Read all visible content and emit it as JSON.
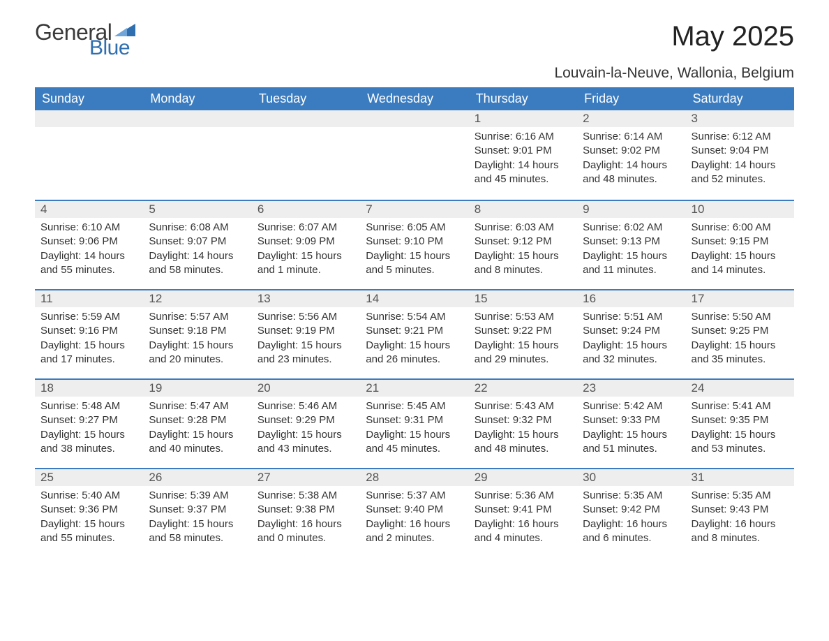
{
  "colors": {
    "header_bg": "#3b7cc0",
    "header_text": "#ffffff",
    "daynum_bg": "#eeeeee",
    "daynum_border": "#3b7cc0",
    "daynum_text": "#555555",
    "body_text": "#333333",
    "logo_blue": "#2f6fb0",
    "logo_general": "#3a3a3a",
    "background": "#ffffff"
  },
  "typography": {
    "title_fontsize": 40,
    "subtitle_fontsize": 21,
    "weekday_fontsize": 18,
    "daynum_fontsize": 17,
    "body_fontsize": 15,
    "font_family": "Arial"
  },
  "logo": {
    "general": "General",
    "blue": "Blue"
  },
  "title": "May 2025",
  "subtitle": "Louvain-la-Neuve, Wallonia, Belgium",
  "weekdays": [
    "Sunday",
    "Monday",
    "Tuesday",
    "Wednesday",
    "Thursday",
    "Friday",
    "Saturday"
  ],
  "weeks": [
    [
      {
        "blank": true
      },
      {
        "blank": true
      },
      {
        "blank": true
      },
      {
        "blank": true
      },
      {
        "num": "1",
        "sunrise": "Sunrise: 6:16 AM",
        "sunset": "Sunset: 9:01 PM",
        "daylight": "Daylight: 14 hours and 45 minutes."
      },
      {
        "num": "2",
        "sunrise": "Sunrise: 6:14 AM",
        "sunset": "Sunset: 9:02 PM",
        "daylight": "Daylight: 14 hours and 48 minutes."
      },
      {
        "num": "3",
        "sunrise": "Sunrise: 6:12 AM",
        "sunset": "Sunset: 9:04 PM",
        "daylight": "Daylight: 14 hours and 52 minutes."
      }
    ],
    [
      {
        "num": "4",
        "sunrise": "Sunrise: 6:10 AM",
        "sunset": "Sunset: 9:06 PM",
        "daylight": "Daylight: 14 hours and 55 minutes."
      },
      {
        "num": "5",
        "sunrise": "Sunrise: 6:08 AM",
        "sunset": "Sunset: 9:07 PM",
        "daylight": "Daylight: 14 hours and 58 minutes."
      },
      {
        "num": "6",
        "sunrise": "Sunrise: 6:07 AM",
        "sunset": "Sunset: 9:09 PM",
        "daylight": "Daylight: 15 hours and 1 minute."
      },
      {
        "num": "7",
        "sunrise": "Sunrise: 6:05 AM",
        "sunset": "Sunset: 9:10 PM",
        "daylight": "Daylight: 15 hours and 5 minutes."
      },
      {
        "num": "8",
        "sunrise": "Sunrise: 6:03 AM",
        "sunset": "Sunset: 9:12 PM",
        "daylight": "Daylight: 15 hours and 8 minutes."
      },
      {
        "num": "9",
        "sunrise": "Sunrise: 6:02 AM",
        "sunset": "Sunset: 9:13 PM",
        "daylight": "Daylight: 15 hours and 11 minutes."
      },
      {
        "num": "10",
        "sunrise": "Sunrise: 6:00 AM",
        "sunset": "Sunset: 9:15 PM",
        "daylight": "Daylight: 15 hours and 14 minutes."
      }
    ],
    [
      {
        "num": "11",
        "sunrise": "Sunrise: 5:59 AM",
        "sunset": "Sunset: 9:16 PM",
        "daylight": "Daylight: 15 hours and 17 minutes."
      },
      {
        "num": "12",
        "sunrise": "Sunrise: 5:57 AM",
        "sunset": "Sunset: 9:18 PM",
        "daylight": "Daylight: 15 hours and 20 minutes."
      },
      {
        "num": "13",
        "sunrise": "Sunrise: 5:56 AM",
        "sunset": "Sunset: 9:19 PM",
        "daylight": "Daylight: 15 hours and 23 minutes."
      },
      {
        "num": "14",
        "sunrise": "Sunrise: 5:54 AM",
        "sunset": "Sunset: 9:21 PM",
        "daylight": "Daylight: 15 hours and 26 minutes."
      },
      {
        "num": "15",
        "sunrise": "Sunrise: 5:53 AM",
        "sunset": "Sunset: 9:22 PM",
        "daylight": "Daylight: 15 hours and 29 minutes."
      },
      {
        "num": "16",
        "sunrise": "Sunrise: 5:51 AM",
        "sunset": "Sunset: 9:24 PM",
        "daylight": "Daylight: 15 hours and 32 minutes."
      },
      {
        "num": "17",
        "sunrise": "Sunrise: 5:50 AM",
        "sunset": "Sunset: 9:25 PM",
        "daylight": "Daylight: 15 hours and 35 minutes."
      }
    ],
    [
      {
        "num": "18",
        "sunrise": "Sunrise: 5:48 AM",
        "sunset": "Sunset: 9:27 PM",
        "daylight": "Daylight: 15 hours and 38 minutes."
      },
      {
        "num": "19",
        "sunrise": "Sunrise: 5:47 AM",
        "sunset": "Sunset: 9:28 PM",
        "daylight": "Daylight: 15 hours and 40 minutes."
      },
      {
        "num": "20",
        "sunrise": "Sunrise: 5:46 AM",
        "sunset": "Sunset: 9:29 PM",
        "daylight": "Daylight: 15 hours and 43 minutes."
      },
      {
        "num": "21",
        "sunrise": "Sunrise: 5:45 AM",
        "sunset": "Sunset: 9:31 PM",
        "daylight": "Daylight: 15 hours and 45 minutes."
      },
      {
        "num": "22",
        "sunrise": "Sunrise: 5:43 AM",
        "sunset": "Sunset: 9:32 PM",
        "daylight": "Daylight: 15 hours and 48 minutes."
      },
      {
        "num": "23",
        "sunrise": "Sunrise: 5:42 AM",
        "sunset": "Sunset: 9:33 PM",
        "daylight": "Daylight: 15 hours and 51 minutes."
      },
      {
        "num": "24",
        "sunrise": "Sunrise: 5:41 AM",
        "sunset": "Sunset: 9:35 PM",
        "daylight": "Daylight: 15 hours and 53 minutes."
      }
    ],
    [
      {
        "num": "25",
        "sunrise": "Sunrise: 5:40 AM",
        "sunset": "Sunset: 9:36 PM",
        "daylight": "Daylight: 15 hours and 55 minutes."
      },
      {
        "num": "26",
        "sunrise": "Sunrise: 5:39 AM",
        "sunset": "Sunset: 9:37 PM",
        "daylight": "Daylight: 15 hours and 58 minutes."
      },
      {
        "num": "27",
        "sunrise": "Sunrise: 5:38 AM",
        "sunset": "Sunset: 9:38 PM",
        "daylight": "Daylight: 16 hours and 0 minutes."
      },
      {
        "num": "28",
        "sunrise": "Sunrise: 5:37 AM",
        "sunset": "Sunset: 9:40 PM",
        "daylight": "Daylight: 16 hours and 2 minutes."
      },
      {
        "num": "29",
        "sunrise": "Sunrise: 5:36 AM",
        "sunset": "Sunset: 9:41 PM",
        "daylight": "Daylight: 16 hours and 4 minutes."
      },
      {
        "num": "30",
        "sunrise": "Sunrise: 5:35 AM",
        "sunset": "Sunset: 9:42 PM",
        "daylight": "Daylight: 16 hours and 6 minutes."
      },
      {
        "num": "31",
        "sunrise": "Sunrise: 5:35 AM",
        "sunset": "Sunset: 9:43 PM",
        "daylight": "Daylight: 16 hours and 8 minutes."
      }
    ]
  ]
}
